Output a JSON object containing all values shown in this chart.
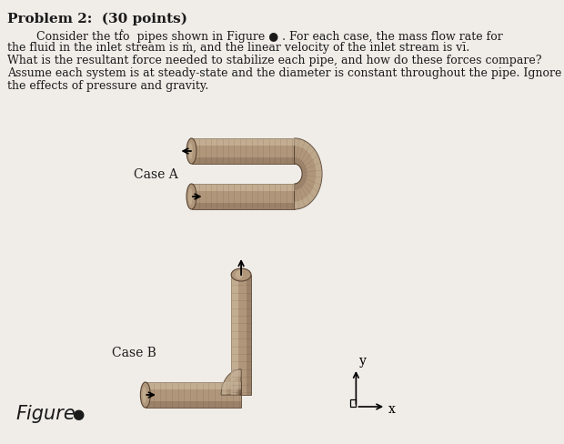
{
  "title": "Problem 2:  (30 points)",
  "line1": "        Consider the two  pipes shown in Figure  . For each case, the mass flow rate for",
  "line2": "the fluid in the inlet stream is m, and the linear velocity of the inlet stream is vi.",
  "line3": "What is the resultant force needed to stabilize each pipe, and how do these forces compare?",
  "line4": "Assume each system is at steady-state and the diameter is constant throughout the pipe. Ignore",
  "line5": "the effects of pressure and gravity.",
  "case_a_label": "Case A",
  "case_b_label": "Case B",
  "figure_label": "Figure",
  "bg_color": "#f0ede8",
  "text_color": "#1a1a1a",
  "pipe_light": "#d4c4a8",
  "pipe_mid": "#b0967a",
  "pipe_dark": "#5a4535"
}
